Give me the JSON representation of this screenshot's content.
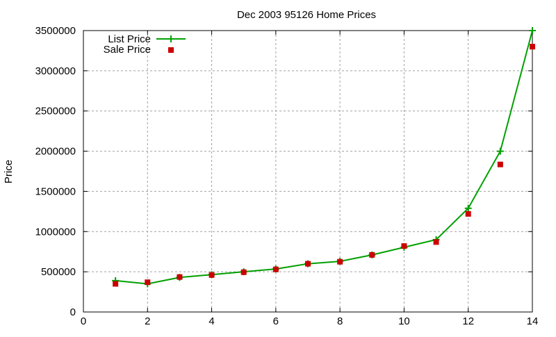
{
  "chart_data": {
    "type": "line",
    "title": "Dec 2003 95126 Home Prices",
    "xlabel": "",
    "ylabel": "Price",
    "xlim": [
      0,
      14
    ],
    "ylim": [
      0,
      3500000
    ],
    "xticks": [
      0,
      2,
      4,
      6,
      8,
      10,
      12,
      14
    ],
    "yticks": [
      0,
      500000,
      1000000,
      1500000,
      2000000,
      2500000,
      3000000,
      3500000
    ],
    "grid": true,
    "legend_position": "top-left",
    "x": [
      1,
      2,
      3,
      4,
      5,
      6,
      7,
      8,
      9,
      10,
      11,
      12,
      13,
      14
    ],
    "series": [
      {
        "name": "List Price",
        "style": "linespoints",
        "marker": "plus",
        "color": "#00a000",
        "values": [
          390000,
          350000,
          430000,
          465000,
          500000,
          535000,
          600000,
          630000,
          710000,
          805000,
          900000,
          1290000,
          2000000,
          3500000
        ]
      },
      {
        "name": "Sale Price",
        "style": "points",
        "marker": "square",
        "color": "#cc0000",
        "values": [
          350000,
          370000,
          435000,
          460000,
          495000,
          530000,
          600000,
          625000,
          710000,
          820000,
          870000,
          1220000,
          1835000,
          3300000
        ]
      }
    ]
  }
}
